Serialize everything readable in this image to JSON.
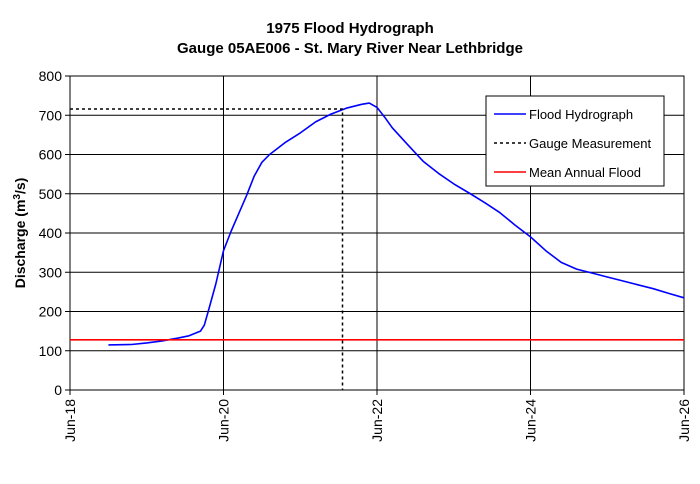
{
  "chart_data": {
    "type": "line",
    "title": "1975 Flood Hydrograph",
    "subtitle": "Gauge 05AE006 - St. Mary River Near Lethbridge",
    "ylabel": "Discharge",
    "ylabel_unit": "(m3/s)",
    "ylim": [
      0,
      800
    ],
    "yticks": [
      0,
      100,
      200,
      300,
      400,
      500,
      600,
      700,
      800
    ],
    "ytick_labels": [
      "0",
      "100",
      "200",
      "300",
      "400",
      "500",
      "600",
      "700",
      "800"
    ],
    "xlim": [
      18,
      26
    ],
    "xticks": [
      18,
      20,
      22,
      24,
      26
    ],
    "xtick_labels": [
      "Jun-18",
      "Jun-20",
      "Jun-22",
      "Jun-24",
      "Jun-26"
    ],
    "grid": true,
    "legend_position": "top-right",
    "series": [
      {
        "name": "Flood Hydrograph",
        "color": "#0000ff",
        "style": "solid",
        "x": [
          18.5,
          18.8,
          19.0,
          19.2,
          19.4,
          19.55,
          19.7,
          19.75,
          19.8,
          19.9,
          20.0,
          20.1,
          20.2,
          20.3,
          20.4,
          20.5,
          20.6,
          20.8,
          21.0,
          21.2,
          21.4,
          21.6,
          21.8,
          21.9,
          22.0,
          22.1,
          22.2,
          22.4,
          22.6,
          22.8,
          23.0,
          23.2,
          23.4,
          23.6,
          23.8,
          24.0,
          24.2,
          24.4,
          24.6,
          24.8,
          25.0,
          25.2,
          25.4,
          25.6,
          25.8,
          26.0
        ],
        "y": [
          115,
          116,
          120,
          125,
          132,
          138,
          150,
          165,
          200,
          270,
          355,
          405,
          450,
          495,
          545,
          580,
          600,
          630,
          655,
          683,
          703,
          718,
          728,
          731,
          720,
          695,
          668,
          625,
          583,
          552,
          525,
          502,
          478,
          452,
          420,
          390,
          355,
          325,
          308,
          298,
          288,
          278,
          268,
          258,
          246,
          235
        ]
      },
      {
        "name": "Gauge Measurement",
        "color": "#000000",
        "style": "dotted",
        "x": [
          18.0,
          21.55,
          21.55
        ],
        "y": [
          716,
          716,
          0
        ]
      },
      {
        "name": "Mean Annual Flood",
        "color": "#ff0000",
        "style": "solid",
        "x": [
          18.0,
          26.0
        ],
        "y": [
          128,
          128
        ]
      }
    ]
  }
}
